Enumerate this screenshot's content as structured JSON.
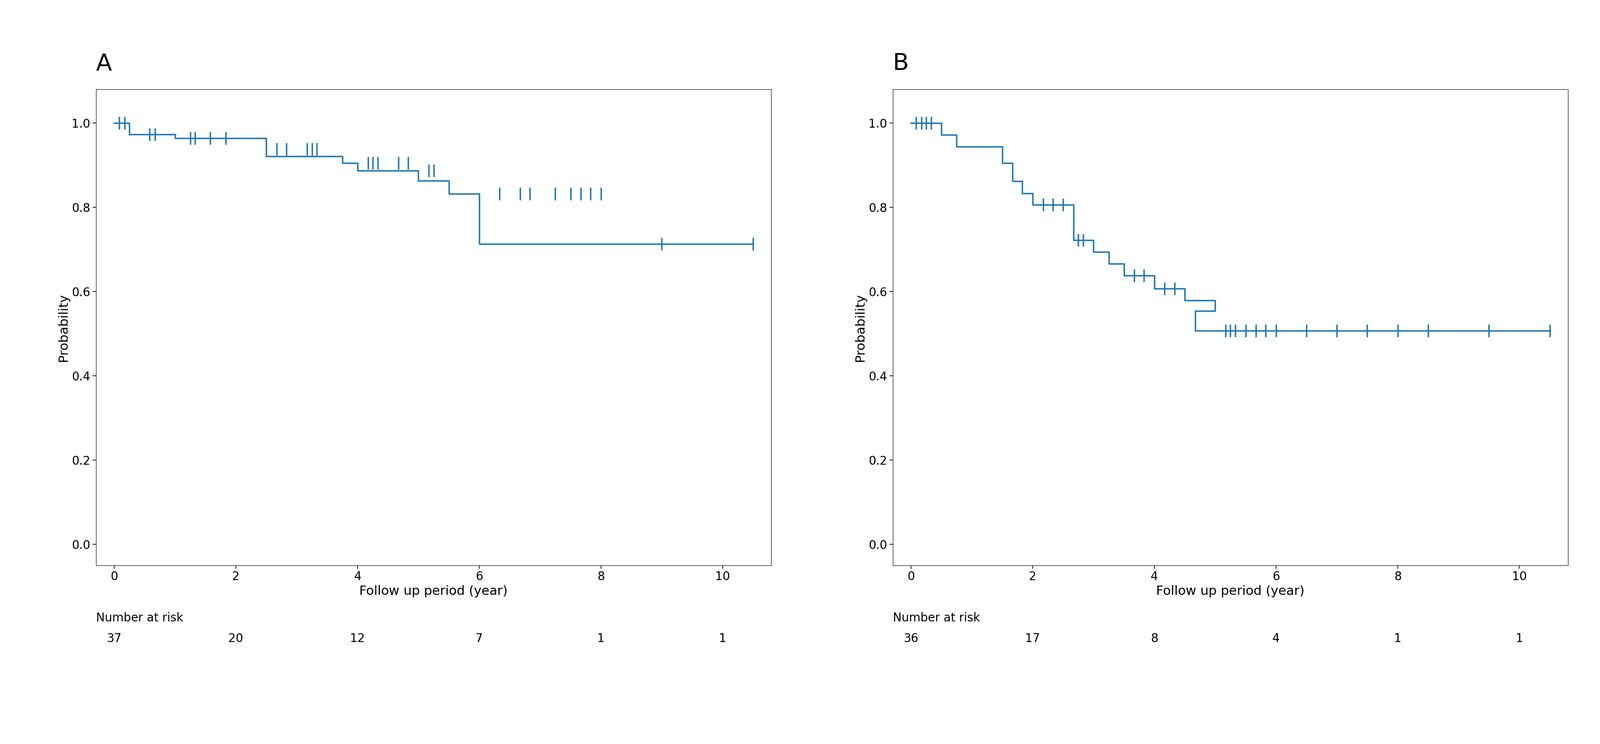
{
  "chart_data": [
    {
      "type": "step",
      "title": "A",
      "ylabel": "Probability",
      "xlabel": "Follow up period (year)",
      "xlim": [
        -0.3,
        10.8
      ],
      "ylim": [
        -0.05,
        1.08
      ],
      "xticks": [
        0,
        2,
        4,
        6,
        8,
        10
      ],
      "yticks": [
        0.0,
        0.2,
        0.4,
        0.6,
        0.8,
        1.0
      ],
      "series": [
        {
          "type": "step",
          "x": [
            0,
            0.25,
            0.25,
            1.0,
            1.0,
            2.5,
            2.5,
            3.75,
            3.75,
            4.0,
            4.0,
            5.0,
            5.0,
            5.5,
            5.5,
            6.0,
            6.0,
            8.0,
            8.0,
            10.5
          ],
          "values": [
            1.0,
            1.0,
            0.973,
            0.973,
            0.964,
            0.964,
            0.921,
            0.921,
            0.905,
            0.905,
            0.887,
            0.887,
            0.863,
            0.863,
            0.832,
            0.832,
            0.713,
            0.713,
            0.713,
            0.713
          ]
        },
        {
          "type": "scatter",
          "marker": "vline",
          "x": [
            0.08,
            0.17,
            0.58,
            0.67,
            1.25,
            1.33,
            1.58,
            1.83,
            2.67,
            2.83,
            3.17,
            3.25,
            3.33,
            4.17,
            4.25,
            4.33,
            4.67,
            4.83,
            5.17,
            5.25,
            6.33,
            6.67,
            6.83,
            7.25,
            7.5,
            7.67,
            7.83,
            8.0,
            9.0,
            10.5
          ],
          "values": [
            1.0,
            1.0,
            0.973,
            0.973,
            0.964,
            0.964,
            0.964,
            0.964,
            0.938,
            0.938,
            0.938,
            0.938,
            0.938,
            0.905,
            0.905,
            0.905,
            0.905,
            0.905,
            0.887,
            0.887,
            0.832,
            0.832,
            0.832,
            0.832,
            0.832,
            0.832,
            0.832,
            0.832,
            0.713,
            0.713
          ]
        }
      ],
      "number_at_risk": {
        "label": "Number at risk",
        "x": [
          0,
          2,
          4,
          6,
          8,
          10
        ],
        "values": [
          37,
          20,
          12,
          7,
          1,
          1
        ]
      }
    },
    {
      "type": "step",
      "title": "B",
      "ylabel": "Probability",
      "xlabel": "Follow up period (year)",
      "xlim": [
        -0.3,
        10.8
      ],
      "ylim": [
        -0.05,
        1.08
      ],
      "xticks": [
        0,
        2,
        4,
        6,
        8,
        10
      ],
      "yticks": [
        0.0,
        0.2,
        0.4,
        0.6,
        0.8,
        1.0
      ],
      "series": [
        {
          "type": "step",
          "x": [
            0,
            0.5,
            0.5,
            0.75,
            0.75,
            1.5,
            1.5,
            1.67,
            1.67,
            1.83,
            1.83,
            2.0,
            2.0,
            2.67,
            2.67,
            3.0,
            3.0,
            3.25,
            3.25,
            3.5,
            3.5,
            4.0,
            4.0,
            4.5,
            4.5,
            5.0,
            5.0,
            4.67,
            4.67,
            5.0,
            5.0,
            10.5
          ],
          "values": [
            1.0,
            1.0,
            0.972,
            0.972,
            0.944,
            0.944,
            0.905,
            0.905,
            0.862,
            0.862,
            0.833,
            0.833,
            0.806,
            0.806,
            0.722,
            0.722,
            0.694,
            0.694,
            0.666,
            0.666,
            0.638,
            0.638,
            0.607,
            0.607,
            0.579,
            0.579,
            0.554,
            0.554,
            0.507,
            0.507,
            0.507,
            0.507
          ]
        },
        {
          "type": "scatter",
          "marker": "vline",
          "x": [
            0.08,
            0.17,
            0.25,
            0.33,
            2.17,
            2.33,
            2.5,
            2.75,
            2.83,
            3.67,
            3.83,
            4.17,
            4.33,
            5.17,
            5.25,
            5.33,
            5.5,
            5.67,
            5.83,
            6.0,
            6.5,
            7.0,
            7.5,
            8.0,
            8.5,
            9.5,
            10.5
          ],
          "values": [
            1.0,
            1.0,
            1.0,
            1.0,
            0.806,
            0.806,
            0.806,
            0.722,
            0.722,
            0.638,
            0.638,
            0.607,
            0.607,
            0.507,
            0.507,
            0.507,
            0.507,
            0.507,
            0.507,
            0.507,
            0.507,
            0.507,
            0.507,
            0.507,
            0.507,
            0.507,
            0.507
          ]
        }
      ],
      "number_at_risk": {
        "label": "Number at risk",
        "x": [
          0,
          2,
          4,
          6,
          8,
          10
        ],
        "values": [
          36,
          17,
          8,
          4,
          1,
          1
        ]
      }
    }
  ]
}
